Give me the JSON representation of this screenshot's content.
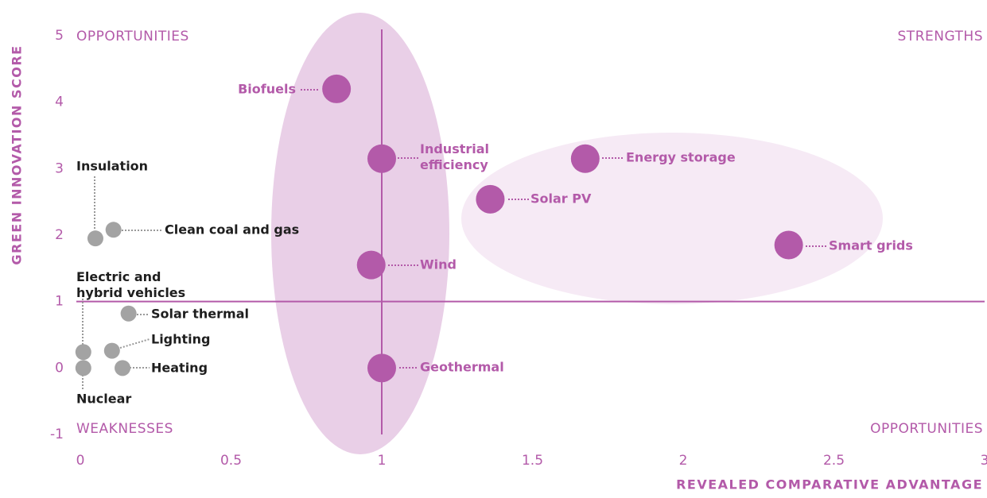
{
  "chart_data": {
    "type": "scatter",
    "xlabel": "REVEALED COMPARATIVE ADVANTAGE",
    "ylabel": "GREEN INNOVATION SCORE",
    "annotations": [
      "OPPORTUNITIES",
      "STRENGTHS",
      "WEAKNESSES",
      "OPPORTUNITIES"
    ],
    "xlim": [
      0,
      3
    ],
    "ylim": [
      -1,
      5
    ],
    "xticks": [
      0,
      0.5,
      1,
      1.5,
      2,
      2.5,
      3
    ],
    "yticks": [
      -1,
      0,
      1,
      2,
      3,
      4,
      5
    ],
    "vline": 1,
    "hline": 1,
    "line_color": "#b35aa9",
    "series": [
      {
        "color": "#b35aa9",
        "label_color": "#b35aa9",
        "labels": [
          "Biofuels",
          "Industrial efficiency",
          "Energy storage",
          "Solar PV",
          "Smart grids",
          "Wind",
          "Geothermal"
        ],
        "x": [
          0.85,
          1.0,
          1.675,
          1.36,
          2.35,
          0.965,
          1.0
        ],
        "values": [
          4.2,
          3.15,
          3.15,
          2.54,
          1.85,
          1.55,
          0
        ]
      },
      {
        "color": "#a3a3a3",
        "label_color": "#1e1e1e",
        "labels": [
          "Insulation",
          "Clean coal and gas",
          "Solar thermal",
          "Lighting",
          "Heating",
          "Electric and hybrid vehicles",
          "Nuclear"
        ],
        "x": [
          0.05,
          0.11,
          0.16,
          0.105,
          0.14,
          0.01,
          0.01
        ],
        "values": [
          1.95,
          2.08,
          0.82,
          0.26,
          0,
          0.24,
          0
        ]
      }
    ]
  }
}
